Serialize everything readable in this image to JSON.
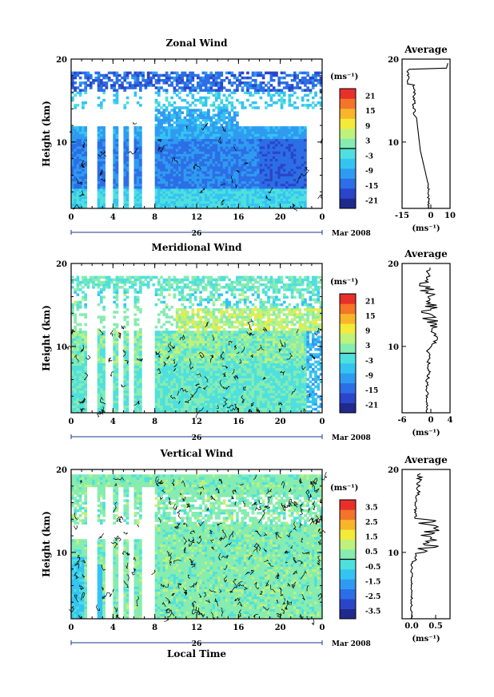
{
  "chart_data": [
    {
      "type": "heatmap",
      "title": "Zonal Wind",
      "ylabel": "Height (km)",
      "ylim": [
        2,
        20
      ],
      "yticks": [
        "10",
        "20"
      ],
      "xlim": [
        0,
        24
      ],
      "xticks": [
        "0",
        "4",
        "8",
        "12",
        "16",
        "20",
        "0"
      ],
      "date_mid": "26",
      "date_right": "Mar 2008",
      "colorbar": {
        "unit": "(ms⁻¹)",
        "ticks": [
          "21",
          "15",
          "9",
          "3",
          "-3",
          "-9",
          "-15",
          "-21"
        ],
        "range": [
          -24,
          24
        ]
      },
      "profile": {
        "title": "Average",
        "xlim": [
          -15,
          10
        ],
        "xticks": [
          "-15",
          "0",
          "10"
        ],
        "xlabel": "(ms⁻¹)",
        "yticks": [
          "10",
          "20"
        ]
      }
    },
    {
      "type": "heatmap",
      "title": "Meridional Wind",
      "ylabel": "Height (km)",
      "ylim": [
        2,
        20
      ],
      "yticks": [
        "10",
        "20"
      ],
      "xlim": [
        0,
        24
      ],
      "xticks": [
        "0",
        "4",
        "8",
        "12",
        "16",
        "20",
        "0"
      ],
      "date_mid": "26",
      "date_right": "Mar 2008",
      "colorbar": {
        "unit": "(ms⁻¹)",
        "ticks": [
          "21",
          "15",
          "9",
          "3",
          "-3",
          "-9",
          "-15",
          "-21"
        ],
        "range": [
          -24,
          24
        ]
      },
      "profile": {
        "title": "Average",
        "xlim": [
          -6,
          4
        ],
        "xticks": [
          "-6",
          "0",
          "4"
        ],
        "xlabel": "(ms⁻¹)",
        "yticks": [
          "10",
          "20"
        ]
      }
    },
    {
      "type": "heatmap",
      "title": "Vertical Wind",
      "ylabel": "Height (km)",
      "xlabel": "Local Time",
      "ylim": [
        2,
        20
      ],
      "yticks": [
        "10",
        "20"
      ],
      "xlim": [
        0,
        24
      ],
      "xticks": [
        "0",
        "4",
        "8",
        "12",
        "16",
        "20",
        "0"
      ],
      "date_mid": "26",
      "date_right": "Mar 2008",
      "colorbar": {
        "unit": "(ms⁻¹)",
        "ticks": [
          "3.5",
          "2.5",
          "1.5",
          "0.5",
          "-0.5",
          "-1.5",
          "-2.5",
          "-3.5"
        ],
        "range": [
          -4,
          4
        ]
      },
      "profile": {
        "title": "Average",
        "xlim": [
          -0.2,
          0.8
        ],
        "xticks": [
          "0.0",
          "0.5"
        ],
        "xlabel": "(ms⁻¹)",
        "yticks": [
          "10",
          "20"
        ]
      }
    }
  ]
}
